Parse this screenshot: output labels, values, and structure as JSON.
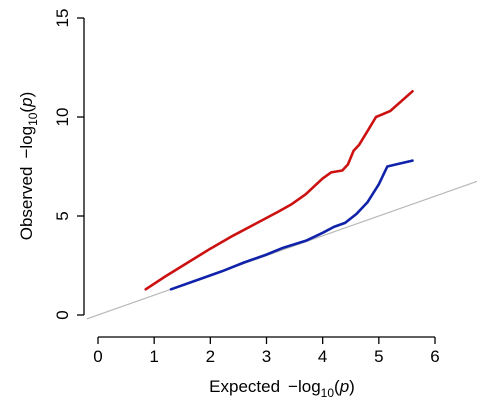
{
  "chart_data": {
    "type": "line",
    "title": "",
    "xlabel": {
      "main": "Expected",
      "prefix": "−log",
      "sub": "10",
      "open": "(",
      "var": "p",
      "close": ")"
    },
    "ylabel": {
      "main": "Observed",
      "prefix": "−log",
      "sub": "10",
      "open": "(",
      "var": "p",
      "close": ")"
    },
    "xlim": [
      0,
      6
    ],
    "ylim": [
      0,
      15
    ],
    "x_ticks": [
      0,
      1,
      2,
      3,
      4,
      5,
      6
    ],
    "y_ticks": [
      0,
      5,
      10,
      15
    ],
    "x_tick_labels": [
      "0",
      "1",
      "2",
      "3",
      "4",
      "5",
      "6"
    ],
    "y_tick_labels": [
      "0",
      "5",
      "10",
      "15"
    ],
    "grid": false,
    "reference_line": {
      "slope": 1.0,
      "intercept": 0,
      "color": "#b8b8b8"
    },
    "series": [
      {
        "color": "#cc1111",
        "x": [
          0.85,
          1.2,
          1.6,
          2.0,
          2.4,
          2.8,
          3.2,
          3.45,
          3.7,
          3.85,
          4.0,
          4.15,
          4.35,
          4.45,
          4.55,
          4.65,
          4.8,
          4.95,
          5.2,
          5.6
        ],
        "y": [
          1.3,
          1.95,
          2.65,
          3.35,
          4.0,
          4.6,
          5.2,
          5.6,
          6.1,
          6.5,
          6.9,
          7.2,
          7.3,
          7.6,
          8.3,
          8.6,
          9.3,
          10.0,
          10.3,
          11.3
        ]
      },
      {
        "color": "#1022aa",
        "x": [
          1.3,
          1.8,
          2.2,
          2.6,
          3.0,
          3.3,
          3.7,
          4.0,
          4.2,
          4.4,
          4.6,
          4.8,
          5.0,
          5.15,
          5.3,
          5.6
        ],
        "y": [
          1.3,
          1.8,
          2.2,
          2.65,
          3.05,
          3.4,
          3.75,
          4.15,
          4.45,
          4.65,
          5.1,
          5.7,
          6.6,
          7.5,
          7.6,
          7.8
        ]
      }
    ]
  }
}
